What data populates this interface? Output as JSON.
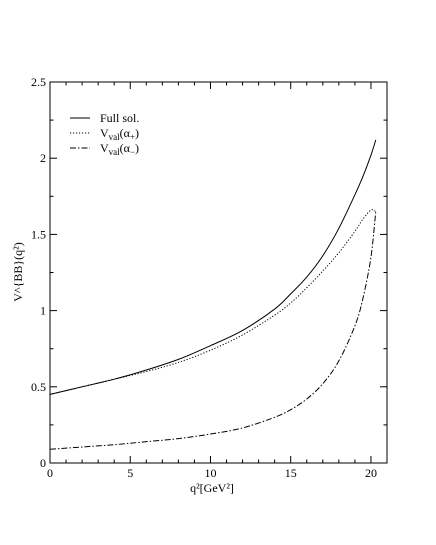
{
  "chart_data": {
    "type": "line",
    "xlabel": "q²[GeV²]",
    "ylabel": "V^{BB}(q²)",
    "xlim": [
      0,
      21
    ],
    "ylim": [
      0,
      2.5
    ],
    "x_ticks": [
      "0",
      "5",
      "10",
      "15",
      "20"
    ],
    "y_ticks": [
      "0",
      "0.5",
      "1",
      "1.5",
      "2",
      "2.5"
    ],
    "grid": false,
    "legend_position": "top-left",
    "series": [
      {
        "name": "Full sol.",
        "line_style": "solid",
        "x": [
          0,
          2,
          4,
          6,
          8,
          10,
          12,
          14,
          15,
          16,
          17,
          18,
          19,
          19.5,
          20,
          20.3
        ],
        "y": [
          0.45,
          0.5,
          0.55,
          0.61,
          0.68,
          0.77,
          0.87,
          1.01,
          1.11,
          1.22,
          1.36,
          1.54,
          1.76,
          1.88,
          2.02,
          2.12
        ]
      },
      {
        "name": "V_val(α+)",
        "line_style": "dotted",
        "x": [
          0,
          2,
          4,
          6,
          8,
          10,
          12,
          14,
          15,
          16,
          17,
          18,
          19,
          19.5,
          20,
          20.3
        ],
        "y": [
          0.45,
          0.5,
          0.55,
          0.6,
          0.66,
          0.74,
          0.84,
          0.97,
          1.05,
          1.15,
          1.26,
          1.38,
          1.52,
          1.6,
          1.66,
          1.65
        ]
      },
      {
        "name": "V_val(α−)",
        "line_style": "dash-dot",
        "x": [
          0,
          2,
          4,
          6,
          8,
          10,
          12,
          14,
          15,
          16,
          17,
          18,
          19,
          19.5,
          20,
          20.3
        ],
        "y": [
          0.09,
          0.105,
          0.12,
          0.14,
          0.16,
          0.19,
          0.23,
          0.3,
          0.35,
          0.42,
          0.52,
          0.67,
          0.9,
          1.08,
          1.35,
          1.65
        ]
      }
    ]
  }
}
